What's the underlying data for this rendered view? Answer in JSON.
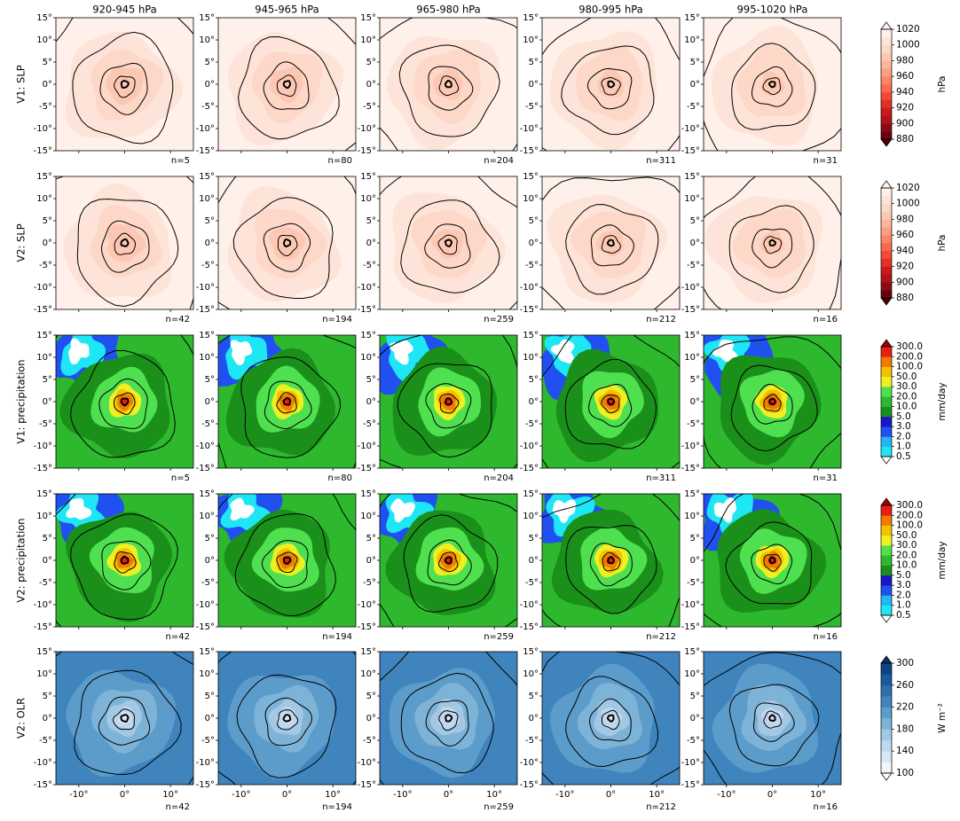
{
  "chart_data": {
    "type": "contour_grid",
    "xlim": [
      -15,
      15
    ],
    "ylim": [
      -15,
      15
    ],
    "xticks": [
      {
        "value": -10,
        "label": "-10°"
      },
      {
        "value": 0,
        "label": "0°"
      },
      {
        "value": 10,
        "label": "10°"
      }
    ],
    "yticks": [
      {
        "value": 15,
        "label": "15°"
      },
      {
        "value": 10,
        "label": "10°"
      },
      {
        "value": 5,
        "label": "5°"
      },
      {
        "value": 0,
        "label": "0°"
      },
      {
        "value": -5,
        "label": "-5°"
      },
      {
        "value": -10,
        "label": "-10°"
      },
      {
        "value": -15,
        "label": "-15°"
      }
    ],
    "columns": [
      "920-945 hPa",
      "945-965 hPa",
      "965-980 hPa",
      "980-995 hPa",
      "995-1020 hPa"
    ],
    "rows": [
      {
        "label": "V1: SLP",
        "values": [
          5,
          80,
          204,
          311,
          31
        ],
        "value_labels": [
          "n=5",
          "n=80",
          "n=204",
          "n=311",
          "n=31"
        ],
        "colorbar": {
          "label": "hPa",
          "scale": "linear",
          "lim": [
            880,
            1020
          ],
          "ticks": [
            880,
            900,
            920,
            940,
            960,
            980,
            1000,
            1020
          ],
          "colors": [
            "#67000d",
            "#8e0a12",
            "#b11218",
            "#cb181d",
            "#e32f27",
            "#f14a35",
            "#f96a4b",
            "#fb8565",
            "#fc9e80",
            "#fdb59b",
            "#fdc8b3",
            "#fdd7c7",
            "#fee4d8",
            "#fff0ea"
          ],
          "extend_colors": [
            "#4d0009",
            "#fff5f0"
          ]
        }
      },
      {
        "label": "V2: SLP",
        "values": [
          42,
          194,
          259,
          212,
          16
        ],
        "value_labels": [
          "n=42",
          "n=194",
          "n=259",
          "n=212",
          "n=16"
        ],
        "colorbar": {
          "label": "hPa",
          "scale": "linear",
          "lim": [
            880,
            1020
          ],
          "ticks": [
            880,
            900,
            920,
            940,
            960,
            980,
            1000,
            1020
          ],
          "colors": [
            "#67000d",
            "#8e0a12",
            "#b11218",
            "#cb181d",
            "#e32f27",
            "#f14a35",
            "#f96a4b",
            "#fb8565",
            "#fc9e80",
            "#fdb59b",
            "#fdc8b3",
            "#fdd7c7",
            "#fee4d8",
            "#fff0ea"
          ],
          "extend_colors": [
            "#4d0009",
            "#fff5f0"
          ]
        }
      },
      {
        "label": "V1: precipitation",
        "values": [
          5,
          80,
          204,
          311,
          31
        ],
        "value_labels": [
          "n=5",
          "n=80",
          "n=204",
          "n=311",
          "n=31"
        ],
        "colorbar": {
          "label": "mm/day",
          "scale": "levels",
          "ticks": [
            0.5,
            {
              "value": 1,
              "label": "1.0"
            },
            {
              "value": 2,
              "label": "2.0"
            },
            {
              "value": 3,
              "label": "3.0"
            },
            {
              "value": 5,
              "label": "5.0"
            },
            {
              "value": 10,
              "label": "10.0"
            },
            {
              "value": 20,
              "label": "20.0"
            },
            {
              "value": 30,
              "label": "30.0"
            },
            {
              "value": 50,
              "label": "50.0"
            },
            {
              "value": 100,
              "label": "100.0"
            },
            {
              "value": 200,
              "label": "200.0"
            },
            {
              "value": 300,
              "label": "300.0"
            }
          ],
          "colors": [
            "#1ee6f5",
            "#21b8f2",
            "#2050f0",
            "#1616c8",
            "#1a901a",
            "#2eb82e",
            "#4fe04f",
            "#f0f020",
            "#f2c200",
            "#f27a00",
            "#e81e10"
          ],
          "extend_colors": [
            "#ffffff",
            "#a00000"
          ]
        }
      },
      {
        "label": "V2: precipitation",
        "values": [
          42,
          194,
          259,
          212,
          16
        ],
        "value_labels": [
          "n=42",
          "n=194",
          "n=259",
          "n=212",
          "n=16"
        ],
        "colorbar": {
          "label": "mm/day",
          "scale": "levels",
          "ticks": [
            0.5,
            {
              "value": 1,
              "label": "1.0"
            },
            {
              "value": 2,
              "label": "2.0"
            },
            {
              "value": 3,
              "label": "3.0"
            },
            {
              "value": 5,
              "label": "5.0"
            },
            {
              "value": 10,
              "label": "10.0"
            },
            {
              "value": 20,
              "label": "20.0"
            },
            {
              "value": 30,
              "label": "30.0"
            },
            {
              "value": 50,
              "label": "50.0"
            },
            {
              "value": 100,
              "label": "100.0"
            },
            {
              "value": 200,
              "label": "200.0"
            },
            {
              "value": 300,
              "label": "300.0"
            }
          ],
          "colors": [
            "#1ee6f5",
            "#21b8f2",
            "#2050f0",
            "#1616c8",
            "#1a901a",
            "#2eb82e",
            "#4fe04f",
            "#f0f020",
            "#f2c200",
            "#f27a00",
            "#e81e10"
          ],
          "extend_colors": [
            "#ffffff",
            "#a00000"
          ]
        }
      },
      {
        "label": "V2: OLR",
        "values": [
          42,
          194,
          259,
          212,
          16
        ],
        "value_labels": [
          "n=42",
          "n=194",
          "n=259",
          "n=212",
          "n=16"
        ],
        "colorbar": {
          "label": "W m⁻²",
          "scale": "linear",
          "lim": [
            100,
            300
          ],
          "ticks": [
            100,
            140,
            180,
            220,
            260,
            300
          ],
          "colors": [
            "#f0f6fc",
            "#d8e7f5",
            "#c0d8ee",
            "#a2c8e3",
            "#7eb3d8",
            "#5c9cca",
            "#3f84bd",
            "#2c6fad",
            "#1a5a9a",
            "#0b4383"
          ],
          "extend_colors": [
            "#ffffff",
            "#08306b"
          ]
        }
      }
    ]
  }
}
